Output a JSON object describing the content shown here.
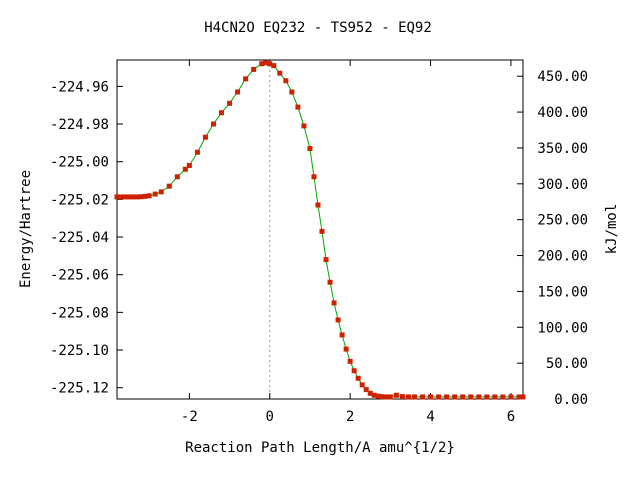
{
  "chart_data": {
    "type": "line",
    "title": "H4CN2O   EQ232 - TS952 - EQ92",
    "xlabel": "Reaction Path Length/A amu^{1/2}",
    "ylabel": "Energy/Hartree",
    "y2label": "kJ/mol",
    "xlim": [
      -3.8,
      6.3
    ],
    "ylim": [
      -225.126,
      -224.946
    ],
    "y2lim": [
      0,
      472.6
    ],
    "x_ticks": [
      -2,
      0,
      2,
      4,
      6
    ],
    "x_tick_labels": [
      "-2",
      "0",
      "2",
      "4",
      "6"
    ],
    "y_ticks": [
      -224.96,
      -224.98,
      -225.0,
      -225.02,
      -225.04,
      -225.06,
      -225.08,
      -225.1,
      -225.12
    ],
    "y_tick_labels": [
      "-224.96",
      "-224.98",
      "-225.00",
      "-225.02",
      "-225.04",
      "-225.06",
      "-225.08",
      "-225.10",
      "-225.12"
    ],
    "y2_ticks": [
      0,
      50,
      100,
      150,
      200,
      250,
      300,
      350,
      400,
      450
    ],
    "y2_tick_labels": [
      "0.00",
      "50.00",
      "100.00",
      "150.00",
      "200.00",
      "250.00",
      "300.00",
      "350.00",
      "400.00",
      "450.00"
    ],
    "ts_marker_x": 0,
    "grid": false,
    "colors": {
      "line": "#00aa00",
      "marker": "#cc2200",
      "ts_line": "#999999"
    },
    "series": [
      {
        "x": [
          -3.8,
          -3.7,
          -3.6,
          -3.5,
          -3.4,
          -3.3,
          -3.2,
          -3.1,
          -3.0,
          -2.85,
          -2.7,
          -2.5,
          -2.3,
          -2.1,
          -2.0,
          -1.8,
          -1.6,
          -1.4,
          -1.2,
          -1.0,
          -0.8,
          -0.6,
          -0.4,
          -0.2,
          -0.1,
          0.0,
          0.1,
          0.25,
          0.4,
          0.55,
          0.7,
          0.85,
          1.0,
          1.1,
          1.2,
          1.3,
          1.4,
          1.5,
          1.6,
          1.7,
          1.8,
          1.9,
          2.0,
          2.1,
          2.2,
          2.3,
          2.4,
          2.5,
          2.6,
          2.7,
          2.8,
          2.9,
          3.0,
          3.15,
          3.3,
          3.45,
          3.6,
          3.8,
          4.0,
          4.2,
          4.4,
          4.6,
          4.8,
          5.0,
          5.2,
          5.4,
          5.6,
          5.8,
          6.0,
          6.2,
          6.3
        ],
        "y": [
          -225.0187,
          -225.0187,
          -225.0187,
          -225.0187,
          -225.0187,
          -225.0187,
          -225.0186,
          -225.0184,
          -225.0181,
          -225.0172,
          -225.016,
          -225.013,
          -225.008,
          -225.004,
          -225.002,
          -224.995,
          -224.987,
          -224.98,
          -224.974,
          -224.969,
          -224.963,
          -224.956,
          -224.951,
          -224.948,
          -224.9475,
          -224.948,
          -224.949,
          -224.953,
          -224.957,
          -224.963,
          -224.971,
          -224.981,
          -224.993,
          -225.008,
          -225.023,
          -225.037,
          -225.052,
          -225.064,
          -225.075,
          -225.084,
          -225.092,
          -225.0995,
          -225.106,
          -225.111,
          -225.115,
          -225.1185,
          -225.121,
          -225.123,
          -225.124,
          -225.1245,
          -225.1248,
          -225.1249,
          -225.1249,
          -225.124,
          -225.1247,
          -225.1249,
          -225.1249,
          -225.1249,
          -225.1249,
          -225.1249,
          -225.1249,
          -225.1249,
          -225.1249,
          -225.1249,
          -225.1249,
          -225.1249,
          -225.1249,
          -225.1249,
          -225.1249,
          -225.1249,
          -225.1249
        ]
      }
    ]
  }
}
